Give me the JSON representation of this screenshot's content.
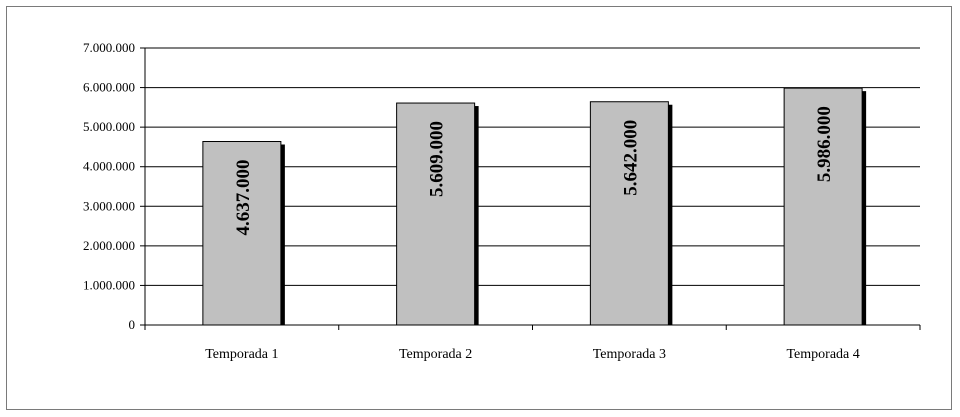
{
  "chart_data": {
    "type": "bar",
    "title": "",
    "xlabel": "",
    "ylabel": "",
    "categories": [
      "Temporada 1",
      "Temporada 2",
      "Temporada 3",
      "Temporada 4"
    ],
    "values": [
      4637000,
      5609000,
      5642000,
      5986000
    ],
    "data_labels": [
      "4.637.000",
      "5.609.000",
      "5.642.000",
      "5.986.000"
    ],
    "ylim": [
      0,
      7000000
    ],
    "yticks": [
      0,
      1000000,
      2000000,
      3000000,
      4000000,
      5000000,
      6000000,
      7000000
    ],
    "ytick_labels": [
      "0",
      "1.000.000",
      "2.000.000",
      "3.000.000",
      "4.000.000",
      "5.000.000",
      "6.000.000",
      "7.000.000"
    ],
    "grid": true,
    "legend": "none",
    "bar_color": "#c0c0c0",
    "bar_shadow_color": "#000000",
    "grid_color": "#000000"
  }
}
